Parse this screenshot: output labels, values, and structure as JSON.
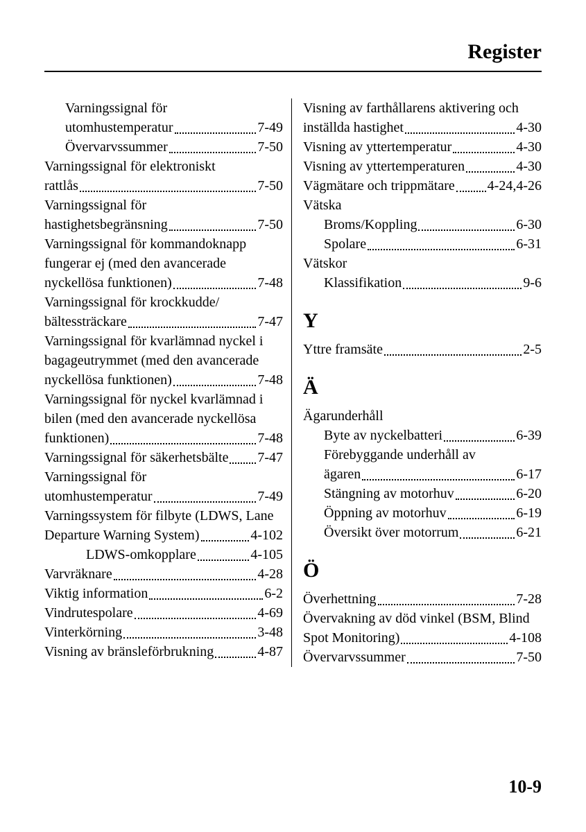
{
  "header_title": "Register",
  "page_number": "10-9",
  "left": {
    "block_v1": {
      "l1": "Varningssignal för",
      "l2_label": "utomhustemperatur",
      "l2_page": "7-49"
    },
    "overvarv": {
      "label": "Övervarvssummer",
      "page": "7-50"
    },
    "elektroniskt": {
      "l1": "Varningssignal för elektroniskt",
      "l2_label": "rattlås",
      "l2_page": "7-50"
    },
    "hastighet": {
      "l1": "Varningssignal för",
      "l2_label": "hastighetsbegränsning",
      "l2_page": "7-50"
    },
    "kommando": {
      "l1": "Varningssignal för kommandoknapp",
      "l2": "fungerar ej (med den avancerade",
      "l3_label": "nyckellösa funktionen)",
      "l3_page": "7-48"
    },
    "krock": {
      "l1": "Varningssignal för krockkudde/",
      "l2_label": "bältessträckare",
      "l2_page": "7-47"
    },
    "kvarlamnad_bagage": {
      "l1": "Varningssignal för kvarlämnad nyckel i",
      "l2": "bagageutrymmet (med den avancerade",
      "l3_label": "nyckellösa funktionen)",
      "l3_page": "7-48"
    },
    "kvarlamnad_bil": {
      "l1": "Varningssignal för nyckel kvarlämnad i",
      "l2": "bilen (med den avancerade nyckellösa",
      "l3_label": "funktionen)",
      "l3_page": "7-48"
    },
    "sakerhetsbalte": {
      "label": "Varningssignal för säkerhetsbälte",
      "page": "7-47"
    },
    "utomhus2": {
      "l1": "Varningssignal för",
      "l2_label": "utomhustemperatur",
      "l2_page": "7-49"
    },
    "ldws": {
      "l1": "Varningssystem för filbyte (LDWS, Lane",
      "l2_label": "Departure Warning System)",
      "l2_page": "4-102"
    },
    "ldws_sub": {
      "label": "LDWS-omkopplare",
      "page": "4-105"
    },
    "varvraknare": {
      "label": "Varvräknare",
      "page": "4-28"
    },
    "viktig": {
      "label": "Viktig information",
      "page": "6-2"
    },
    "vindrute": {
      "label": "Vindrutespolare",
      "page": "4-69"
    },
    "vinter": {
      "label": "Vinterkörning",
      "page": "3-48"
    },
    "bransle": {
      "label": "Visning av bränsleförbrukning",
      "page": "4-87"
    }
  },
  "right": {
    "farthallare": {
      "l1": "Visning av farthållarens aktivering och",
      "l2_label": "inställda hastighet",
      "l2_page": "4-30"
    },
    "yttertemp": {
      "label": "Visning av yttertemperatur",
      "page": "4-30"
    },
    "yttertemp2": {
      "label": "Visning av yttertemperaturen",
      "page": "4-30"
    },
    "vagmatare": {
      "label": "Vägmätare och trippmätare",
      "page": "4-24,4-26"
    },
    "vatska_head": "Vätska",
    "vatska_broms": {
      "label": "Broms/Koppling",
      "page": "6-30"
    },
    "vatska_spolare": {
      "label": "Spolare",
      "page": "6-31"
    },
    "vatskor_head": "Vätskor",
    "vatskor_klass": {
      "label": "Klassifikation",
      "page": "9-6"
    },
    "letter_y": "Y",
    "yttre": {
      "label": "Yttre framsäte",
      "page": "2-5"
    },
    "letter_a": "Ä",
    "agar_head": "Ägarunderhåll",
    "agar_byte": {
      "label": "Byte av nyckelbatteri",
      "page": "6-39"
    },
    "agar_fore": {
      "l1": "Förebyggande underhåll av",
      "l2_label": "ägaren",
      "l2_page": "6-17"
    },
    "agar_stang": {
      "label": "Stängning av motorhuv",
      "page": "6-20"
    },
    "agar_oppn": {
      "label": "Öppning av motorhuv",
      "page": "6-19"
    },
    "agar_oversikt": {
      "label": "Översikt över motorrum",
      "page": "6-21"
    },
    "letter_o": "Ö",
    "overhettning": {
      "label": "Överhettning",
      "page": "7-28"
    },
    "bsm": {
      "l1": "Övervakning av död vinkel (BSM, Blind",
      "l2_label": "Spot Monitoring)",
      "l2_page": "4-108"
    },
    "overvarv": {
      "label": "Övervarvssummer",
      "page": "7-50"
    }
  }
}
